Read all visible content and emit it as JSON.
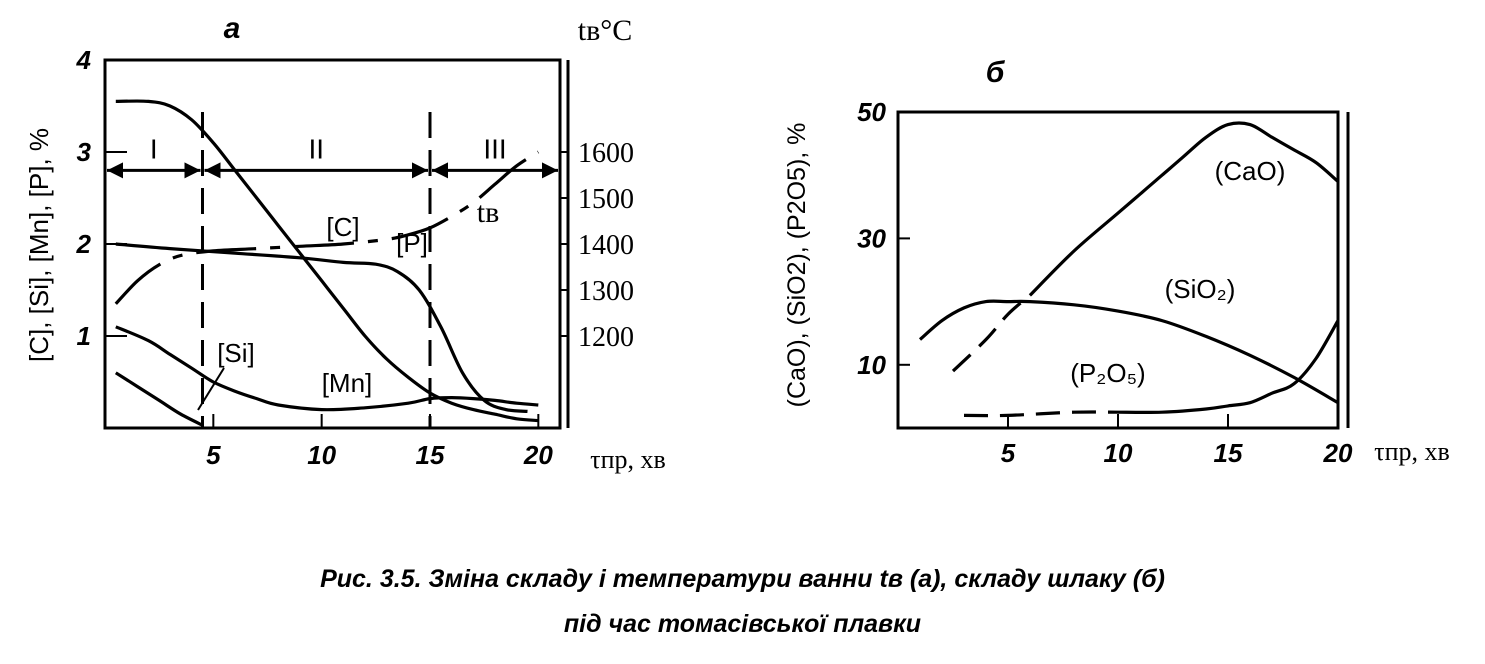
{
  "caption": {
    "line1": "Рис. 3.5. Зміна складу і температури ванни tв (а),  складу шлаку (б)",
    "line2": "під час томасівської плавки"
  },
  "chart_data": [
    {
      "id": "a",
      "panel_label": "а",
      "type": "line",
      "ylabel": "[C], [Si], [Mn], [P], %",
      "y2label": "tв°C",
      "xlabel": "τпр, хв",
      "xlim": [
        0,
        21
      ],
      "ylim": [
        0,
        4
      ],
      "y2lim": [
        1000,
        1800
      ],
      "xticks": [
        5,
        10,
        15,
        20
      ],
      "yticks": [
        1,
        2,
        3,
        4
      ],
      "y2ticks": [
        1200,
        1300,
        1400,
        1500,
        1600
      ],
      "grid": false,
      "periods": [
        {
          "label": "I",
          "from": 0,
          "to": 4.5
        },
        {
          "label": "II",
          "from": 4.5,
          "to": 15
        },
        {
          "label": "III",
          "from": 15,
          "to": 21
        }
      ],
      "period_lines": [
        4.5,
        15
      ],
      "series": [
        {
          "name": "[C]",
          "axis": "left",
          "x": [
            0.5,
            2,
            3,
            4,
            5,
            6,
            7,
            8,
            9,
            10,
            11,
            12,
            13,
            14,
            15,
            16,
            17,
            18,
            19,
            20
          ],
          "y": [
            3.55,
            3.55,
            3.5,
            3.35,
            3.1,
            2.8,
            2.5,
            2.2,
            1.9,
            1.6,
            1.3,
            1.0,
            0.75,
            0.55,
            0.38,
            0.27,
            0.2,
            0.15,
            0.1,
            0.08
          ]
        },
        {
          "name": "[P]",
          "axis": "left",
          "x": [
            0.5,
            3,
            6,
            9,
            11,
            12.5,
            13.5,
            14.5,
            15.5,
            16.5,
            17.5,
            18.5,
            19.5
          ],
          "y": [
            2.0,
            1.95,
            1.9,
            1.85,
            1.8,
            1.78,
            1.7,
            1.5,
            1.1,
            0.6,
            0.3,
            0.2,
            0.18
          ]
        },
        {
          "name": "[Mn]",
          "axis": "left",
          "x": [
            0.5,
            2,
            3,
            4,
            5,
            6,
            7,
            8,
            10,
            12,
            14,
            15,
            16,
            17,
            18,
            19,
            20
          ],
          "y": [
            1.1,
            0.95,
            0.8,
            0.65,
            0.5,
            0.4,
            0.32,
            0.25,
            0.2,
            0.22,
            0.27,
            0.32,
            0.33,
            0.32,
            0.3,
            0.27,
            0.25
          ]
        },
        {
          "name": "[Si]",
          "axis": "left",
          "x": [
            0.5,
            1.5,
            2.5,
            3.5,
            4.5
          ],
          "y": [
            0.6,
            0.45,
            0.3,
            0.15,
            0.03
          ]
        },
        {
          "name": "tв",
          "axis": "right",
          "x": [
            0.5,
            1.5,
            2.5,
            3.5,
            5,
            7,
            9,
            11,
            13,
            14,
            15,
            16,
            17,
            18,
            19,
            20
          ],
          "y": [
            1270,
            1320,
            1355,
            1375,
            1385,
            1390,
            1395,
            1400,
            1410,
            1420,
            1435,
            1460,
            1490,
            1530,
            1570,
            1600
          ]
        }
      ]
    },
    {
      "id": "b",
      "panel_label": "б",
      "type": "line",
      "ylabel": "(CaO), (SiO2), (P2O5), %",
      "xlabel": "τпр, хв",
      "xlim": [
        0,
        20
      ],
      "ylim": [
        0,
        50
      ],
      "xticks": [
        5,
        10,
        15,
        20
      ],
      "yticks": [
        10,
        30,
        50
      ],
      "grid": false,
      "series": [
        {
          "name": "(CaO)",
          "label": "(CaO)",
          "x": [
            2.5,
            4,
            5,
            6,
            8,
            10,
            11,
            12,
            13,
            14,
            15,
            16,
            17,
            18,
            19,
            20
          ],
          "y": [
            9,
            14,
            18,
            21,
            28,
            34,
            37,
            40,
            43,
            46,
            48,
            48,
            46,
            44,
            42,
            39
          ]
        },
        {
          "name": "(SiO2)",
          "label": "(SiO₂)",
          "x": [
            1,
            2,
            3,
            4,
            5,
            6,
            8,
            10,
            12,
            14,
            16,
            18,
            20
          ],
          "y": [
            14,
            17,
            19,
            20,
            20,
            20,
            19.5,
            18.5,
            17,
            14.5,
            11.5,
            8,
            4
          ]
        },
        {
          "name": "(P2O5)",
          "label": "(P₂O₅)",
          "x": [
            3,
            5,
            8,
            10,
            12,
            14,
            15,
            16,
            17,
            18,
            19,
            20
          ],
          "y": [
            2,
            2,
            2.5,
            2.5,
            2.5,
            3,
            3.5,
            4,
            5.5,
            7,
            11,
            17
          ]
        }
      ]
    }
  ]
}
